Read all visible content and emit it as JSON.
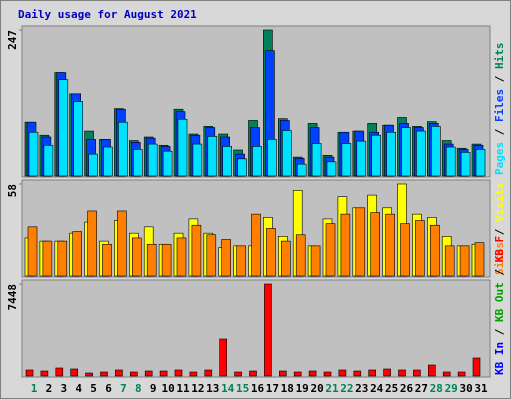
{
  "chart_data": [
    {
      "type": "bar",
      "title": "Daily usage for August 2021",
      "ylim": [
        0,
        247
      ],
      "yticks": [
        247
      ],
      "legend_separator": " / ",
      "series": [
        {
          "name": "Hits",
          "color": "#00805c",
          "values": [
            91,
            69,
            175,
            139,
            76,
            62,
            114,
            60,
            66,
            52,
            113,
            71,
            84,
            71,
            44,
            94,
            247,
            97,
            32,
            89,
            35,
            74,
            76,
            89,
            86,
            99,
            84,
            92,
            60,
            47,
            54
          ]
        },
        {
          "name": "Files",
          "color": "#0040ff",
          "values": [
            91,
            66,
            175,
            139,
            62,
            62,
            113,
            57,
            64,
            50,
            109,
            69,
            82,
            66,
            37,
            82,
            212,
            94,
            30,
            82,
            32,
            74,
            76,
            74,
            86,
            89,
            82,
            89,
            54,
            45,
            52
          ]
        },
        {
          "name": "Pages",
          "color": "#00e0ff",
          "values": [
            74,
            52,
            163,
            126,
            37,
            49,
            91,
            45,
            54,
            42,
            96,
            54,
            67,
            50,
            29,
            50,
            62,
            77,
            20,
            55,
            24,
            55,
            59,
            69,
            74,
            82,
            76,
            84,
            49,
            40,
            45
          ]
        }
      ]
    },
    {
      "type": "bar",
      "ylim": [
        0,
        58
      ],
      "yticks": [
        58
      ],
      "legend_separator": " / ",
      "series": [
        {
          "name": "Visits",
          "color": "#ffff00",
          "values": [
            24,
            22,
            22,
            27,
            34,
            22,
            35,
            27,
            31,
            20,
            27,
            36,
            27,
            18,
            19,
            19,
            37,
            25,
            54,
            19,
            36,
            50,
            43,
            51,
            43,
            58,
            39,
            37,
            25,
            19,
            20
          ]
        },
        {
          "name": "Sites",
          "color": "#ff8000",
          "values": [
            31,
            22,
            22,
            28,
            41,
            20,
            41,
            24,
            20,
            20,
            24,
            32,
            26,
            23,
            19,
            39,
            30,
            22,
            26,
            19,
            33,
            39,
            43,
            40,
            39,
            33,
            35,
            32,
            19,
            19,
            21
          ]
        }
      ]
    },
    {
      "type": "bar",
      "ylim": [
        0,
        7448
      ],
      "yticks": [
        7448
      ],
      "legend_separator": " / ",
      "categories": [
        "1",
        "2",
        "3",
        "4",
        "5",
        "6",
        "7",
        "8",
        "9",
        "10",
        "11",
        "12",
        "13",
        "14",
        "15",
        "16",
        "17",
        "18",
        "19",
        "20",
        "21",
        "22",
        "23",
        "24",
        "25",
        "26",
        "27",
        "28",
        "29",
        "30",
        "31"
      ],
      "highlight_categories": [
        "1",
        "7",
        "8",
        "14",
        "15",
        "21",
        "22",
        "28",
        "29"
      ],
      "highlight_color": "#00805c",
      "series": [
        {
          "name": "KB F",
          "color": "#ff0000",
          "values": [
            486,
            405,
            648,
            567,
            243,
            324,
            486,
            324,
            405,
            405,
            486,
            324,
            486,
            2995,
            324,
            405,
            7448,
            405,
            324,
            405,
            324,
            486,
            405,
            486,
            567,
            486,
            486,
            891,
            324,
            324,
            1458
          ]
        }
      ],
      "legend_extra": [
        {
          "name": "KB Out",
          "color": "#00a000"
        },
        {
          "name": "KB In",
          "color": "#0000ff"
        }
      ]
    }
  ]
}
